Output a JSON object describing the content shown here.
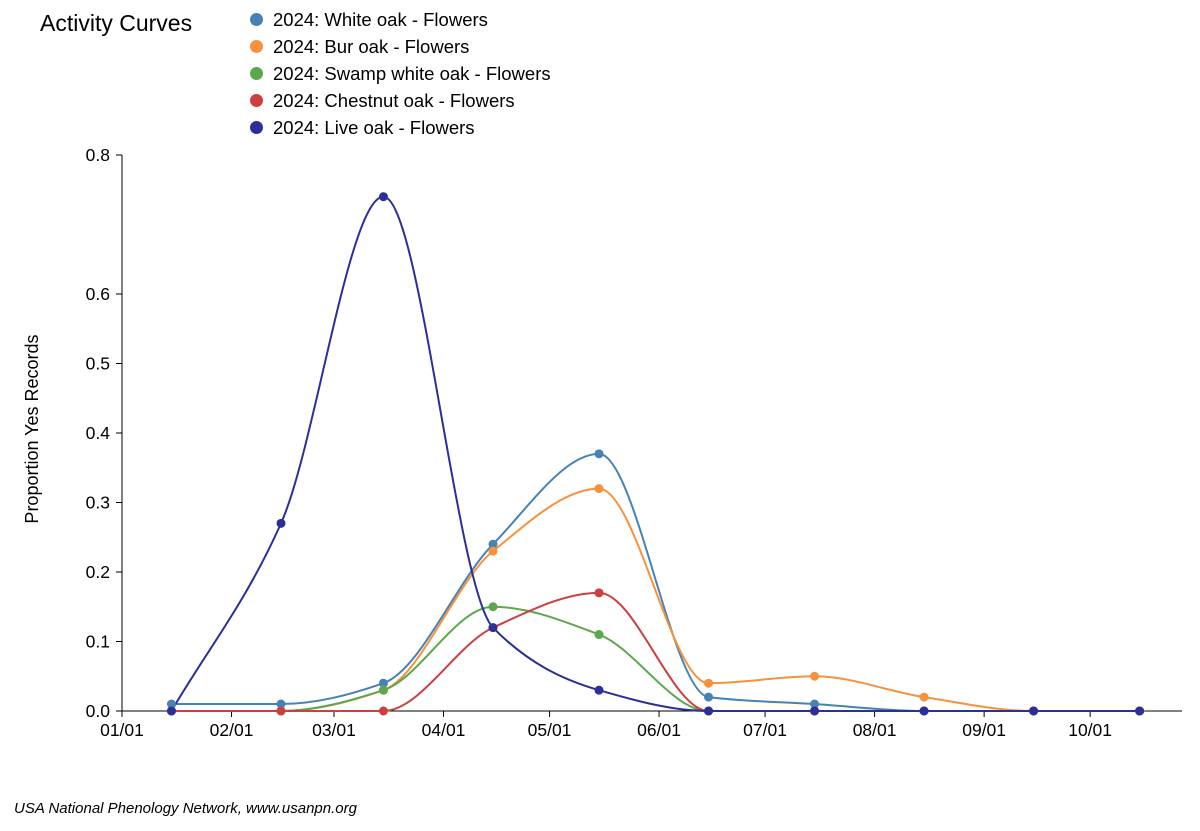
{
  "chart_data": {
    "type": "line",
    "title": "Activity Curves",
    "xlabel": "",
    "ylabel": "Proportion Yes Records",
    "x_ticks": [
      "01/01",
      "02/01",
      "03/01",
      "04/01",
      "05/01",
      "06/01",
      "07/01",
      "08/01",
      "09/01",
      "10/01"
    ],
    "y_ticks": [
      "0.0",
      "0.1",
      "0.2",
      "0.3",
      "0.4",
      "0.5",
      "0.6",
      "0.8"
    ],
    "y_tick_values": [
      0,
      0.1,
      0.2,
      0.3,
      0.4,
      0.5,
      0.6,
      0.8
    ],
    "ylim": [
      0,
      0.8
    ],
    "x_dates": [
      "2024-01-15",
      "2024-02-15",
      "2024-03-15",
      "2024-04-15",
      "2024-05-15",
      "2024-06-15",
      "2024-07-15",
      "2024-08-15",
      "2024-09-15",
      "2024-10-15"
    ],
    "series": [
      {
        "name": "2024: White oak - Flowers",
        "color": "#4682b4",
        "values": [
          0.01,
          0.01,
          0.04,
          0.24,
          0.37,
          0.02,
          0.01,
          0,
          0,
          0
        ]
      },
      {
        "name": "2024: Bur oak - Flowers",
        "color": "#f8913d",
        "values": [
          0,
          0,
          0.03,
          0.23,
          0.32,
          0.04,
          0.05,
          0.02,
          0,
          0
        ]
      },
      {
        "name": "2024: Swamp white oak - Flowers",
        "color": "#5aa74c",
        "values": [
          0,
          0,
          0.03,
          0.15,
          0.11,
          0,
          0,
          0,
          0,
          0
        ]
      },
      {
        "name": "2024: Chestnut oak - Flowers",
        "color": "#cc3f3f",
        "values": [
          0,
          0,
          0,
          0.12,
          0.17,
          0,
          0,
          0,
          0,
          0
        ]
      },
      {
        "name": "2024: Live oak - Flowers",
        "color": "#2b2f98",
        "values": [
          0,
          0.27,
          0.74,
          0.12,
          0.03,
          0,
          0,
          0,
          0,
          0
        ]
      }
    ],
    "grid": false,
    "legend_position": "top"
  },
  "credit": "USA National Phenology Network, www.usanpn.org"
}
